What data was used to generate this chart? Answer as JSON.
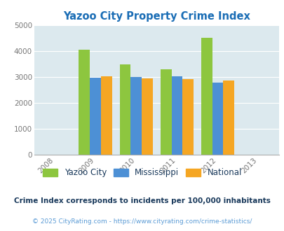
{
  "title": "Yazoo City Property Crime Index",
  "years": [
    2009,
    2010,
    2011,
    2012
  ],
  "x_ticks": [
    2008,
    2009,
    2010,
    2011,
    2012,
    2013
  ],
  "yazoo_city": [
    4070,
    3500,
    3310,
    4530
  ],
  "mississippi": [
    2980,
    3000,
    3040,
    2800
  ],
  "national": [
    3040,
    2950,
    2920,
    2870
  ],
  "colors": {
    "yazoo_city": "#8dc63f",
    "mississippi": "#4d90d5",
    "national": "#f5a623"
  },
  "ylim": [
    0,
    5000
  ],
  "yticks": [
    0,
    1000,
    2000,
    3000,
    4000,
    5000
  ],
  "bg_color": "#dce9ee",
  "bar_width": 0.27,
  "legend_labels": [
    "Yazoo City",
    "Mississippi",
    "National"
  ],
  "footnote1": "Crime Index corresponds to incidents per 100,000 inhabitants",
  "footnote2": "© 2025 CityRating.com - https://www.cityrating.com/crime-statistics/",
  "title_color": "#1a6db5",
  "footnote1_color": "#1a3a5c",
  "footnote2_color": "#5b9bd5",
  "tick_color": "#777777",
  "legend_text_color": "#1a3a5c",
  "grid_color": "#ffffff"
}
